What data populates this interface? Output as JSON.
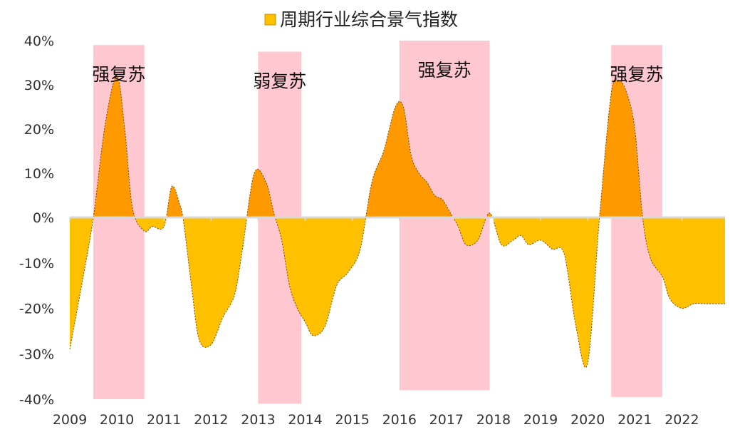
{
  "chart_data": {
    "type": "area",
    "title": "",
    "xlabel": "",
    "ylabel": "",
    "ylim": [
      -0.4,
      0.4
    ],
    "xlim": [
      "2009-01",
      "2022-12"
    ],
    "grid": false,
    "legend": {
      "position": "top-center",
      "entries": [
        "周期行业综合景气指数"
      ]
    },
    "y_ticks": [
      {
        "value": 0.4,
        "label": "40%"
      },
      {
        "value": 0.3,
        "label": "30%"
      },
      {
        "value": 0.2,
        "label": "20%"
      },
      {
        "value": 0.1,
        "label": "10%"
      },
      {
        "value": 0.0,
        "label": "0%"
      },
      {
        "value": -0.1,
        "label": "-10%"
      },
      {
        "value": -0.2,
        "label": "-20%"
      },
      {
        "value": -0.3,
        "label": "-30%"
      },
      {
        "value": -0.4,
        "label": "-40%"
      }
    ],
    "x_ticks": [
      {
        "value": "2009-01",
        "label": "2009"
      },
      {
        "value": "2010-01",
        "label": "2010"
      },
      {
        "value": "2011-01",
        "label": "2011"
      },
      {
        "value": "2012-01",
        "label": "2012"
      },
      {
        "value": "2013-01",
        "label": "2013"
      },
      {
        "value": "2014-01",
        "label": "2014"
      },
      {
        "value": "2015-01",
        "label": "2015"
      },
      {
        "value": "2016-01",
        "label": "2016"
      },
      {
        "value": "2017-01",
        "label": "2017"
      },
      {
        "value": "2018-01",
        "label": "2018"
      },
      {
        "value": "2019-01",
        "label": "2019"
      },
      {
        "value": "2020-01",
        "label": "2020"
      },
      {
        "value": "2021-01",
        "label": "2021"
      },
      {
        "value": "2022-01",
        "label": "2022"
      }
    ],
    "colors": {
      "positive_fill": "#ff9900",
      "negative_fill": "#ffc000",
      "band_fill": "#ffc7cf",
      "axis_line": "#d9d9d9",
      "outline": "#7a4a00",
      "legend_swatch": "#ffc000"
    },
    "series": [
      {
        "name": "周期行业综合景气指数",
        "x": [
          "2009-01",
          "2009-04",
          "2009-07",
          "2009-10",
          "2010-01",
          "2010-03",
          "2010-05",
          "2010-08",
          "2010-10",
          "2011-01",
          "2011-03",
          "2011-05",
          "2011-06",
          "2011-08",
          "2011-10",
          "2012-01",
          "2012-04",
          "2012-07",
          "2012-09",
          "2012-12",
          "2013-03",
          "2013-05",
          "2013-07",
          "2013-09",
          "2013-11",
          "2014-01",
          "2014-03",
          "2014-06",
          "2014-09",
          "2014-12",
          "2015-03",
          "2015-06",
          "2015-09",
          "2015-12",
          "2016-02",
          "2016-04",
          "2016-06",
          "2016-08",
          "2016-10",
          "2016-12",
          "2017-02",
          "2017-04",
          "2017-06",
          "2017-09",
          "2017-12",
          "2018-03",
          "2018-06",
          "2018-08",
          "2018-10",
          "2019-01",
          "2019-04",
          "2019-07",
          "2019-10",
          "2020-01",
          "2020-04",
          "2020-07",
          "2020-09",
          "2020-11",
          "2021-01",
          "2021-03",
          "2021-05",
          "2021-08",
          "2021-10",
          "2022-01",
          "2022-04",
          "2022-07",
          "2022-10",
          "2022-12"
        ],
        "values": [
          -0.29,
          -0.15,
          0.0,
          0.21,
          0.32,
          0.2,
          0.02,
          -0.03,
          -0.02,
          -0.02,
          0.07,
          0.03,
          -0.01,
          -0.15,
          -0.27,
          -0.28,
          -0.22,
          -0.17,
          -0.07,
          0.1,
          0.08,
          0.01,
          -0.05,
          -0.15,
          -0.2,
          -0.23,
          -0.26,
          -0.24,
          -0.15,
          -0.12,
          -0.07,
          0.08,
          0.15,
          0.25,
          0.25,
          0.14,
          0.1,
          0.08,
          0.05,
          0.04,
          0.01,
          -0.02,
          -0.06,
          -0.05,
          0.01,
          -0.06,
          -0.05,
          -0.04,
          -0.06,
          -0.05,
          -0.07,
          -0.08,
          -0.24,
          -0.32,
          0.0,
          0.28,
          0.31,
          0.28,
          0.2,
          0.0,
          -0.09,
          -0.13,
          -0.18,
          -0.2,
          -0.19,
          -0.19,
          -0.19,
          -0.19
        ]
      }
    ],
    "bands": [
      {
        "start": "2009-07",
        "end": "2010-08",
        "top": 0.39,
        "bottom": -0.4,
        "label": "强复苏"
      },
      {
        "start": "2013-01",
        "end": "2013-12",
        "top": 0.375,
        "bottom": -0.41,
        "label": "弱复苏"
      },
      {
        "start": "2016-01",
        "end": "2017-12",
        "top": 0.4,
        "bottom": -0.38,
        "label": "强复苏"
      },
      {
        "start": "2020-07",
        "end": "2021-08",
        "top": 0.39,
        "bottom": -0.395,
        "label": "强复苏"
      }
    ]
  }
}
